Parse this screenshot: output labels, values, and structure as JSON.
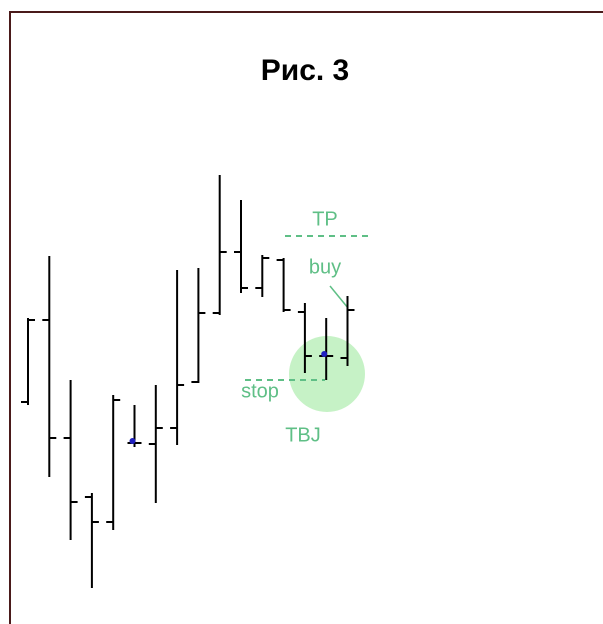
{
  "chart_data": {
    "type": "ohlc",
    "title": "Рис. 3",
    "open": [
      198,
      280,
      162,
      103,
      78,
      157,
      156,
      172,
      218,
      287,
      348,
      312,
      340,
      288,
      244,
      242
    ],
    "high": [
      282,
      344,
      220,
      107,
      205,
      195,
      215,
      330,
      332,
      425,
      400,
      345,
      342,
      297,
      282,
      304
    ],
    "low": [
      195,
      123,
      60,
      12,
      70,
      153,
      97,
      155,
      217,
      285,
      307,
      303,
      288,
      227,
      220,
      234
    ],
    "close": [
      280,
      162,
      98,
      78,
      200,
      157,
      172,
      215,
      287,
      348,
      312,
      342,
      290,
      244,
      244,
      290
    ],
    "ylim": [
      0,
      600
    ],
    "color": "#000000",
    "annotations": {
      "tp": "TP",
      "buy": "buy",
      "stop": "stop",
      "pattern": "TBJ"
    }
  }
}
